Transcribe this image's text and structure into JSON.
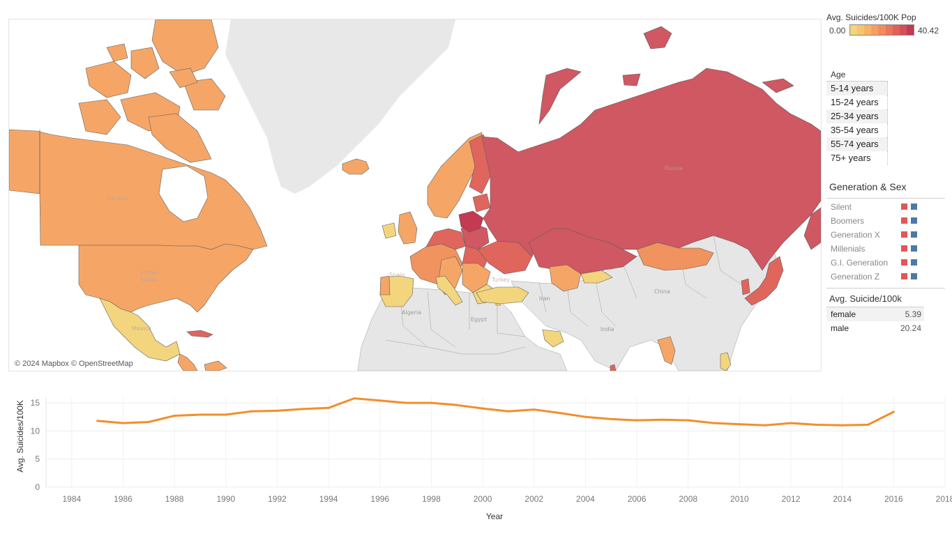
{
  "map": {
    "attribution": "© 2024 Mapbox © OpenStreetMap",
    "labels": {
      "canada": "Canada",
      "united": "United",
      "states": "States",
      "mexico": "Mexico",
      "russia": "Russia",
      "algeria": "Algeria",
      "egypt": "Egypt",
      "iran": "Iran",
      "india": "India",
      "china": "China",
      "spain": "Spain",
      "turkey": "Turkey"
    },
    "colors": {
      "land_nodata": "#e6e6e6",
      "border": "#5e5e5e",
      "c_low": "#f3d57e",
      "c_mid": "#f5a667",
      "c_mid2": "#f0935e",
      "c_high": "#e0655c",
      "c_top": "#cf5862",
      "c_max": "#c33a52"
    }
  },
  "color_legend": {
    "title": "Avg. Suicides/100K Pop",
    "min": "0.00",
    "max": "40.42",
    "ramp": [
      "#f3d57e",
      "#f7c46f",
      "#f7b266",
      "#f69f61",
      "#f28c5d",
      "#ea7558",
      "#df6257",
      "#d44f59",
      "#c33a52"
    ]
  },
  "age_filter": {
    "title": "Age",
    "items": [
      "5-14 years",
      "15-24 years",
      "25-34 years",
      "35-54 years",
      "55-74 years",
      "75+ years"
    ]
  },
  "generation_sex": {
    "title": "Generation & Sex",
    "female_color": "#e15759",
    "male_color": "#4e79a7",
    "items": [
      "Silent",
      "Boomers",
      "Generation X",
      "Millenials",
      "G.I. Generation",
      "Generation Z"
    ]
  },
  "sex_table": {
    "title": "Avg. Suicide/100k",
    "rows": [
      {
        "label": "female",
        "value": "5.39"
      },
      {
        "label": "male",
        "value": "20.24"
      }
    ]
  },
  "chart_data": {
    "type": "line",
    "color": "#f28e2b",
    "xlabel": "Year",
    "ylabel": "Avg. Suicides/100K",
    "xlim": [
      1983,
      2018
    ],
    "ylim": [
      0,
      16
    ],
    "x_ticks": [
      1984,
      1986,
      1988,
      1990,
      1992,
      1994,
      1996,
      1998,
      2000,
      2002,
      2004,
      2006,
      2008,
      2010,
      2012,
      2014,
      2016,
      2018
    ],
    "y_ticks": [
      0,
      5,
      10,
      15
    ],
    "x": [
      1985,
      1986,
      1987,
      1988,
      1989,
      1990,
      1991,
      1992,
      1993,
      1994,
      1995,
      1996,
      1997,
      1998,
      1999,
      2000,
      2001,
      2002,
      2003,
      2004,
      2005,
      2006,
      2007,
      2008,
      2009,
      2010,
      2011,
      2012,
      2013,
      2014,
      2015,
      2016
    ],
    "y": [
      11.8,
      11.4,
      11.6,
      12.7,
      12.9,
      12.9,
      13.5,
      13.6,
      13.9,
      14.1,
      15.8,
      15.4,
      15.0,
      15.0,
      14.6,
      14.0,
      13.5,
      13.8,
      13.2,
      12.5,
      12.1,
      11.9,
      12.0,
      11.9,
      11.4,
      11.2,
      11.0,
      11.4,
      11.1,
      11.0,
      11.1,
      13.4
    ]
  }
}
